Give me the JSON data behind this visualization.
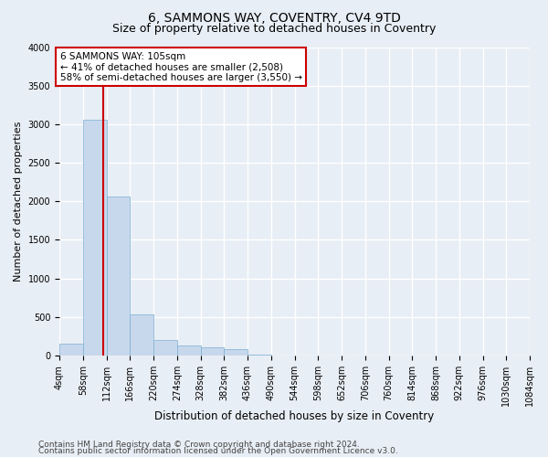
{
  "title": "6, SAMMONS WAY, COVENTRY, CV4 9TD",
  "subtitle": "Size of property relative to detached houses in Coventry",
  "xlabel": "Distribution of detached houses by size in Coventry",
  "ylabel": "Number of detached properties",
  "footer1": "Contains HM Land Registry data © Crown copyright and database right 2024.",
  "footer2": "Contains public sector information licensed under the Open Government Licence v3.0.",
  "bin_edges": [
    4,
    58,
    112,
    166,
    220,
    274,
    328,
    382,
    436,
    490,
    544,
    598,
    652,
    706,
    760,
    814,
    868,
    922,
    976,
    1030,
    1084
  ],
  "bar_heights": [
    148,
    3060,
    2060,
    530,
    205,
    130,
    105,
    78,
    12,
    5,
    0,
    0,
    0,
    0,
    0,
    0,
    0,
    0,
    0,
    0
  ],
  "bar_color": "#c8d8ec",
  "bar_edge_color": "#7aafd4",
  "vline_x": 105,
  "vline_color": "#cc0000",
  "annotation_line1": "6 SAMMONS WAY: 105sqm",
  "annotation_line2": "← 41% of detached houses are smaller (2,508)",
  "annotation_line3": "58% of semi-detached houses are larger (3,550) →",
  "annotation_edge_color": "#cc0000",
  "ylim": [
    0,
    4000
  ],
  "yticks": [
    0,
    500,
    1000,
    1500,
    2000,
    2500,
    3000,
    3500,
    4000
  ],
  "bg_color": "#e8eef5",
  "grid_color": "#ffffff",
  "title_fontsize": 10,
  "subtitle_fontsize": 9,
  "xlabel_fontsize": 8.5,
  "ylabel_fontsize": 8,
  "tick_fontsize": 7,
  "footer_fontsize": 6.5,
  "ann_fontsize": 7.5
}
